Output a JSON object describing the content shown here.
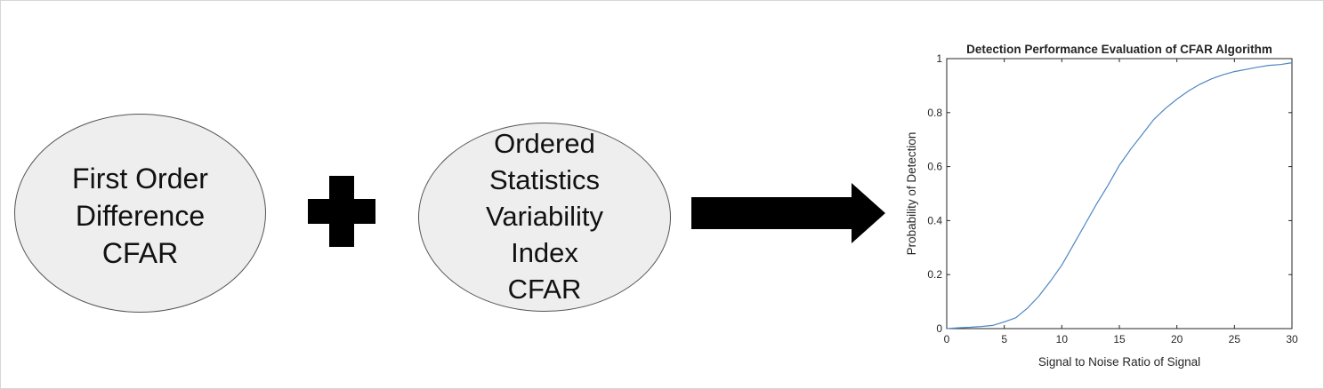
{
  "nodes": [
    {
      "lines": [
        "First Order",
        "Difference",
        "CFAR"
      ]
    },
    {
      "lines": [
        "Ordered",
        "Statistics",
        "Variability",
        "Index",
        "CFAR"
      ]
    }
  ],
  "colors": {
    "node_fill": "#eeeeee",
    "node_border": "#555555",
    "symbol": "#000000",
    "curve": "#4e86c4",
    "axis": "#262626"
  },
  "icons": {
    "plus": "plus-icon",
    "arrow": "right-arrow-icon"
  },
  "chart_data": {
    "type": "line",
    "title": "Detection Performance Evaluation of CFAR Algorithm",
    "xlabel": "Signal to Noise Ratio of Signal",
    "ylabel": "Probability of Detection",
    "xlim": [
      0,
      30
    ],
    "ylim": [
      0,
      1
    ],
    "xticks": [
      "0",
      "5",
      "10",
      "15",
      "20",
      "25",
      "30"
    ],
    "yticks": [
      "0",
      "0.2",
      "0.4",
      "0.6",
      "0.8",
      "1"
    ],
    "grid": false,
    "series": [
      {
        "x": [
          0,
          1,
          2,
          3,
          4,
          5,
          6,
          7,
          8,
          9,
          10,
          11,
          12,
          13,
          14,
          15,
          16,
          17,
          18,
          19,
          20,
          21,
          22,
          23,
          24,
          25,
          26,
          27,
          28,
          29,
          30
        ],
        "y": [
          0,
          0.003,
          0.005,
          0.008,
          0.012,
          0.025,
          0.04,
          0.075,
          0.12,
          0.175,
          0.235,
          0.31,
          0.385,
          0.46,
          0.53,
          0.605,
          0.665,
          0.72,
          0.775,
          0.815,
          0.85,
          0.88,
          0.905,
          0.925,
          0.94,
          0.952,
          0.96,
          0.968,
          0.975,
          0.978,
          0.985
        ]
      }
    ]
  }
}
